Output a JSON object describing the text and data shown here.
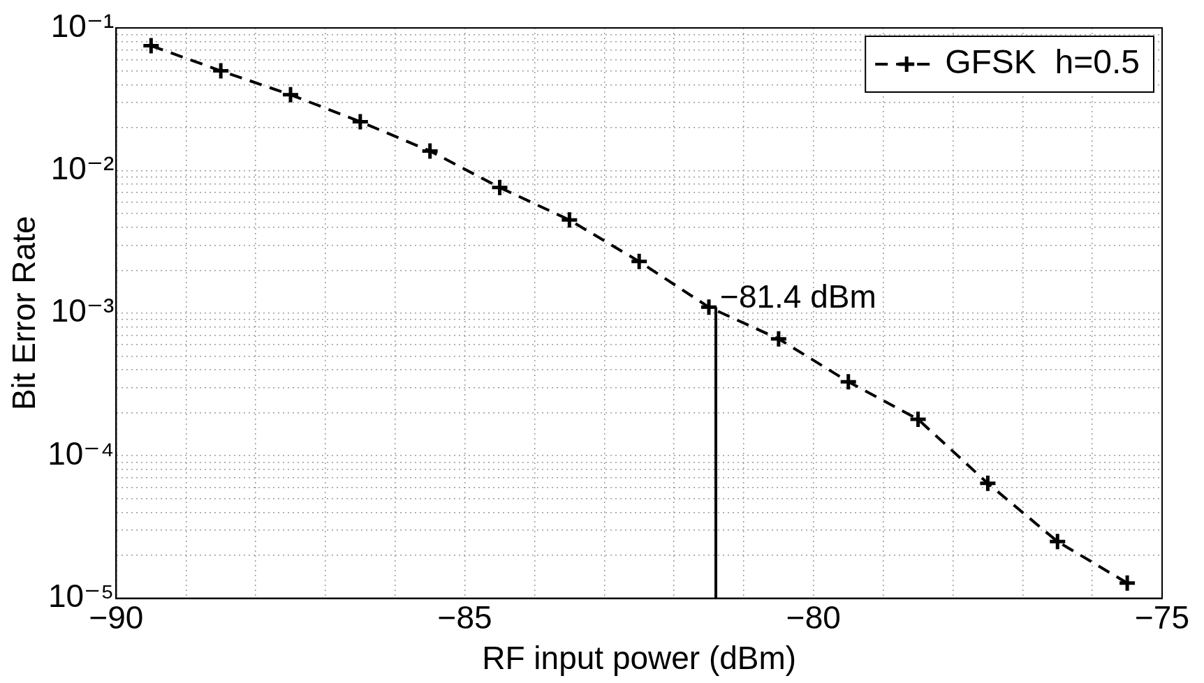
{
  "chart_data": {
    "type": "line",
    "xlabel": "RF input power (dBm)",
    "ylabel": "Bit Error Rate",
    "log": "y",
    "grid": true,
    "legend": "top right",
    "marker": "cross",
    "xlim": [
      -90,
      -75
    ],
    "ylim": [
      1e-05,
      0.1
    ],
    "xticks": [
      -90,
      {
        "value": -89,
        "label": null
      },
      {
        "value": -88,
        "label": null
      },
      {
        "value": -87,
        "label": null
      },
      {
        "value": -86,
        "label": null
      },
      -85,
      {
        "value": -84,
        "label": null
      },
      {
        "value": -83,
        "label": null
      },
      {
        "value": -82,
        "label": null
      },
      {
        "value": -81,
        "label": null
      },
      -80,
      {
        "value": -79,
        "label": null
      },
      {
        "value": -78,
        "label": null
      },
      {
        "value": -77,
        "label": null
      },
      {
        "value": -76,
        "label": null
      },
      -75
    ],
    "yticks": [
      {
        "value": 1e-05,
        "label": "10⁻⁵"
      },
      {
        "value": 2e-05,
        "label": null
      },
      {
        "value": 3e-05,
        "label": null
      },
      {
        "value": 4e-05,
        "label": null
      },
      {
        "value": 5e-05,
        "label": null
      },
      {
        "value": 6e-05,
        "label": null
      },
      {
        "value": 7e-05,
        "label": null
      },
      {
        "value": 8e-05,
        "label": null
      },
      {
        "value": 9e-05,
        "label": null
      },
      {
        "value": 0.0001,
        "label": "10⁻⁴"
      },
      {
        "value": 0.0002,
        "label": null
      },
      {
        "value": 0.0003,
        "label": null
      },
      {
        "value": 0.0004,
        "label": null
      },
      {
        "value": 0.0005,
        "label": null
      },
      {
        "value": 0.0006,
        "label": null
      },
      {
        "value": 0.0007,
        "label": null
      },
      {
        "value": 0.0008,
        "label": null
      },
      {
        "value": 0.0009,
        "label": null
      },
      {
        "value": 0.001,
        "label": "10⁻³"
      },
      {
        "value": 0.002,
        "label": null
      },
      {
        "value": 0.003,
        "label": null
      },
      {
        "value": 0.004,
        "label": null
      },
      {
        "value": 0.005,
        "label": null
      },
      {
        "value": 0.006,
        "label": null
      },
      {
        "value": 0.007,
        "label": null
      },
      {
        "value": 0.008,
        "label": null
      },
      {
        "value": 0.009,
        "label": null
      },
      {
        "value": 0.01,
        "label": "10⁻²"
      },
      {
        "value": 0.02,
        "label": null
      },
      {
        "value": 0.03,
        "label": null
      },
      {
        "value": 0.04,
        "label": null
      },
      {
        "value": 0.05,
        "label": null
      },
      {
        "value": 0.06,
        "label": null
      },
      {
        "value": 0.07,
        "label": null
      },
      {
        "value": 0.08,
        "label": null
      },
      {
        "value": 0.09,
        "label": null
      },
      {
        "value": 0.1,
        "label": "10⁻¹"
      }
    ],
    "series": [
      {
        "name": "GFSK  h=0.5",
        "color": "#000000",
        "line_style": "dashed",
        "x": [
          -89.5,
          -88.5,
          -87.5,
          -86.5,
          -85.5,
          -84.5,
          -83.5,
          -82.5,
          -81.5,
          -80.5,
          -79.5,
          -78.5,
          -77.5,
          -76.5,
          -75.5
        ],
        "values": [
          0.075,
          0.05,
          0.034,
          0.022,
          0.0137,
          0.0076,
          0.0045,
          0.0023,
          0.0011,
          0.00066,
          0.00033,
          0.00018,
          6.4e-05,
          2.5e-05,
          1.28e-05
        ]
      },
      {
        "color": "#000000",
        "marker": "none",
        "line_style": "solid",
        "x": [
          -81.4,
          -81.4
        ],
        "values": [
          1e-05,
          0.0011
        ]
      }
    ],
    "annotations": [
      {
        "text": "−81.4 dBm",
        "x": -81.4,
        "y": 0.0011
      }
    ]
  }
}
